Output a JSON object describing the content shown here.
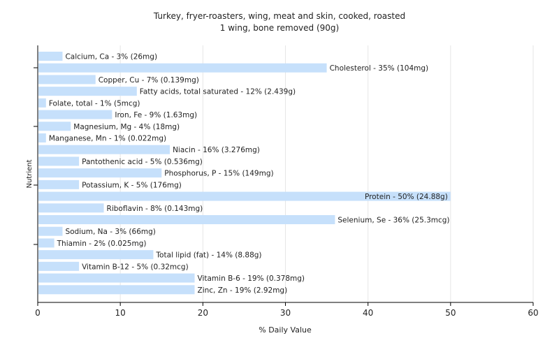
{
  "chart_data": {
    "type": "bar",
    "orientation": "horizontal",
    "title": "Turkey, fryer-roasters, wing, meat and skin, cooked, roasted",
    "subtitle": "1 wing, bone removed (90g)",
    "xlabel": "% Daily Value",
    "ylabel": "Nutrient",
    "xlim": [
      0,
      60
    ],
    "xticks": [
      0,
      10,
      20,
      30,
      40,
      50,
      60
    ],
    "grid": true,
    "categories": [
      "Calcium, Ca",
      "Cholesterol",
      "Copper, Cu",
      "Fatty acids, total saturated",
      "Folate, total",
      "Iron, Fe",
      "Magnesium, Mg",
      "Manganese, Mn",
      "Niacin",
      "Pantothenic acid",
      "Phosphorus, P",
      "Potassium, K",
      "Protein",
      "Riboflavin",
      "Selenium, Se",
      "Sodium, Na",
      "Thiamin",
      "Total lipid (fat)",
      "Vitamin B-12",
      "Vitamin B-6",
      "Zinc, Zn"
    ],
    "values": [
      3,
      35,
      7,
      12,
      1,
      9,
      4,
      1,
      16,
      5,
      15,
      5,
      50,
      8,
      36,
      3,
      2,
      14,
      5,
      19,
      19
    ],
    "labels": [
      "Calcium, Ca - 3% (26mg)",
      "Cholesterol - 35% (104mg)",
      "Copper, Cu - 7% (0.139mg)",
      "Fatty acids, total saturated - 12% (2.439g)",
      "Folate, total - 1% (5mcg)",
      "Iron, Fe - 9% (1.63mg)",
      "Magnesium, Mg - 4% (18mg)",
      "Manganese, Mn - 1% (0.022mg)",
      "Niacin - 16% (3.276mg)",
      "Pantothenic acid - 5% (0.536mg)",
      "Phosphorus, P - 15% (149mg)",
      "Potassium, K - 5% (176mg)",
      "Protein - 50% (24.88g)",
      "Riboflavin - 8% (0.143mg)",
      "Selenium, Se - 36% (25.3mcg)",
      "Sodium, Na - 3% (66mg)",
      "Thiamin - 2% (0.025mg)",
      "Total lipid (fat) - 14% (8.88g)",
      "Vitamin B-12 - 5% (0.32mcg)",
      "Vitamin B-6 - 19% (0.378mg)",
      "Zinc, Zn - 19% (2.92mg)"
    ],
    "colors": {
      "bar": "#c6e0fb",
      "grid": "#e6e6e6",
      "axis": "#000000",
      "text": "#222222"
    }
  }
}
